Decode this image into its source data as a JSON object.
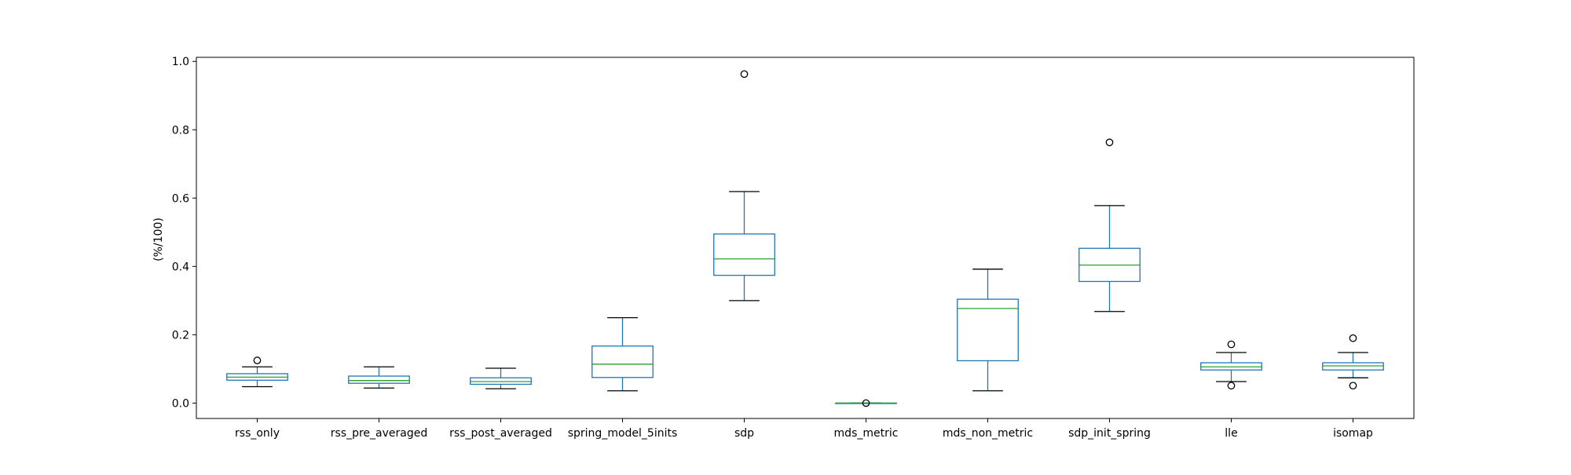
{
  "chart_data": {
    "type": "box",
    "title": "",
    "xlabel": "",
    "ylabel": "(%/100)",
    "ylim": [
      -0.045,
      1.012
    ],
    "yticks": [
      0.0,
      0.2,
      0.4,
      0.6,
      0.8,
      1.0
    ],
    "ytick_labels": [
      "0.0",
      "0.2",
      "0.4",
      "0.6",
      "0.8",
      "1.0"
    ],
    "grid": false,
    "legend": "none",
    "categories": [
      "rss_only",
      "rss_pre_averaged",
      "rss_post_averaged",
      "spring_model_5inits",
      "sdp",
      "mds_metric",
      "mds_non_metric",
      "sdp_init_spring",
      "lle",
      "isomap"
    ],
    "boxes": [
      {
        "whisker_low": 0.048,
        "q1": 0.067,
        "median": 0.076,
        "q3": 0.086,
        "whisker_high": 0.106,
        "outliers": [
          0.125
        ]
      },
      {
        "whisker_low": 0.044,
        "q1": 0.058,
        "median": 0.066,
        "q3": 0.079,
        "whisker_high": 0.106,
        "outliers": []
      },
      {
        "whisker_low": 0.042,
        "q1": 0.055,
        "median": 0.063,
        "q3": 0.074,
        "whisker_high": 0.102,
        "outliers": []
      },
      {
        "whisker_low": 0.036,
        "q1": 0.075,
        "median": 0.114,
        "q3": 0.167,
        "whisker_high": 0.25,
        "outliers": []
      },
      {
        "whisker_low": 0.3,
        "q1": 0.374,
        "median": 0.422,
        "q3": 0.495,
        "whisker_high": 0.619,
        "outliers": [
          0.963
        ]
      },
      {
        "whisker_low": 0.0,
        "q1": 0.0,
        "median": 0.0,
        "q3": 0.0,
        "whisker_high": 0.0,
        "outliers": [
          0.0
        ]
      },
      {
        "whisker_low": 0.036,
        "q1": 0.124,
        "median": 0.277,
        "q3": 0.304,
        "whisker_high": 0.392,
        "outliers": []
      },
      {
        "whisker_low": 0.268,
        "q1": 0.356,
        "median": 0.404,
        "q3": 0.453,
        "whisker_high": 0.578,
        "outliers": [
          0.763
        ]
      },
      {
        "whisker_low": 0.063,
        "q1": 0.097,
        "median": 0.106,
        "q3": 0.118,
        "whisker_high": 0.148,
        "outliers": [
          0.172,
          0.051
        ]
      },
      {
        "whisker_low": 0.074,
        "q1": 0.097,
        "median": 0.109,
        "q3": 0.118,
        "whisker_high": 0.148,
        "outliers": [
          0.19,
          0.051
        ]
      }
    ],
    "colors": {
      "box": "#1f77b4",
      "median": "#2ca02c",
      "whisker_cap": "#000000",
      "outlier": "#000000",
      "axes": "#000000",
      "background": "#ffffff"
    }
  }
}
